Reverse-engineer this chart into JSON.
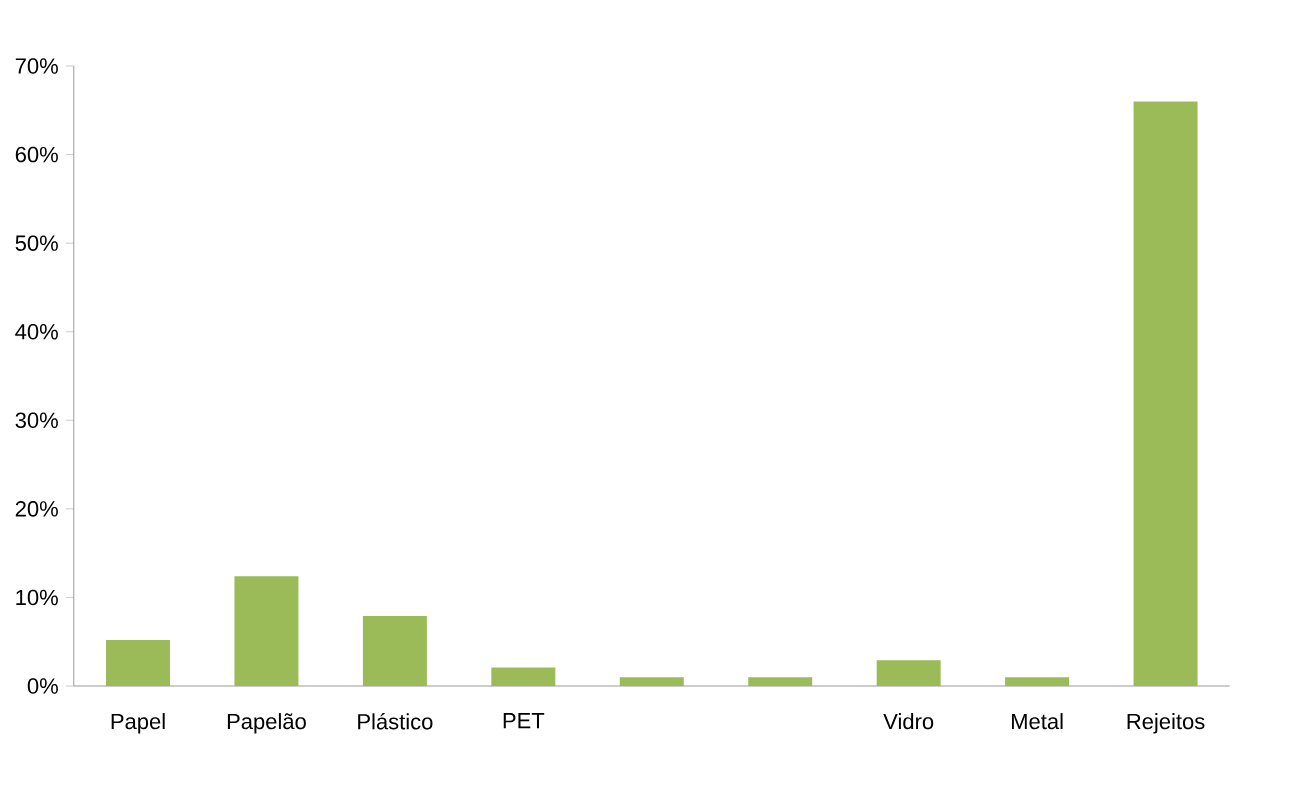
{
  "chart_data": {
    "type": "bar",
    "categories": [
      "Papel",
      "Papelão",
      "Plástico",
      "PET",
      null,
      null,
      "Vidro",
      "Metal",
      "Rejeitos"
    ],
    "values": [
      5.2,
      12.4,
      7.9,
      2.1,
      1.0,
      1.0,
      2.9,
      1.0,
      66.0
    ],
    "color": "#9bbb59",
    "ylim": [
      0,
      70
    ],
    "yticks": [
      {
        "value": 0,
        "label": "0%"
      },
      {
        "value": 10,
        "label": "10%"
      },
      {
        "value": 20,
        "label": "20%"
      },
      {
        "value": 30,
        "label": "30%"
      },
      {
        "value": 40,
        "label": "40%"
      },
      {
        "value": 50,
        "label": "50%"
      },
      {
        "value": 60,
        "label": "60%"
      },
      {
        "value": 70,
        "label": "70%"
      }
    ]
  }
}
